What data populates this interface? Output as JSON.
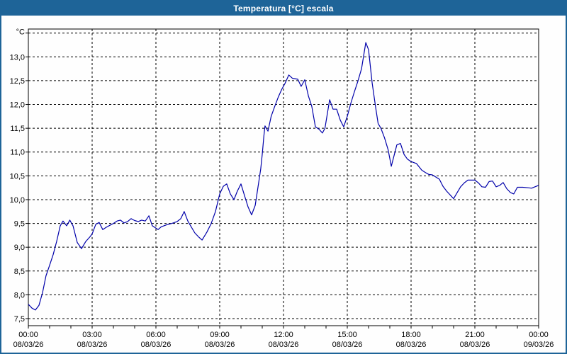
{
  "window": {
    "title": "Temperatura [°C] escala"
  },
  "colors": {
    "title_bar": "#1E6498",
    "window_border": "#1E6498",
    "background": "#FEFEFE",
    "plot_line": "#0000AA",
    "grid": "#000000",
    "axis_text": "#000000",
    "title_text": "#FFFFFF"
  },
  "axes": {
    "y_unit": "°C",
    "y_tick_labels": [
      "13,0",
      "12,5",
      "12,0",
      "11,5",
      "11,0",
      "10,5",
      "10,0",
      "9,5",
      "9,0",
      "8,5",
      "8,0",
      "7,5"
    ],
    "y_tick_values": [
      13.0,
      12.5,
      12.0,
      11.5,
      11.0,
      10.5,
      10.0,
      9.5,
      9.0,
      8.5,
      8.0,
      7.5
    ],
    "x_ticks": [
      {
        "hour": 0,
        "time": "00:00",
        "date": "08/03/26"
      },
      {
        "hour": 3,
        "time": "03:00",
        "date": "08/03/26"
      },
      {
        "hour": 6,
        "time": "06:00",
        "date": "08/03/26"
      },
      {
        "hour": 9,
        "time": "09:00",
        "date": "08/03/26"
      },
      {
        "hour": 12,
        "time": "12:00",
        "date": "08/03/26"
      },
      {
        "hour": 15,
        "time": "15:00",
        "date": "08/03/26"
      },
      {
        "hour": 18,
        "time": "18:00",
        "date": "08/03/26"
      },
      {
        "hour": 21,
        "time": "21:00",
        "date": "08/03/26"
      },
      {
        "hour": 24,
        "time": "00:00",
        "date": "09/03/26"
      }
    ]
  },
  "chart_data": {
    "type": "line",
    "title": "Temperatura [°C] escala",
    "xlabel": "",
    "ylabel": "°C",
    "x_unit": "hours since 08/03/26 00:00",
    "x_range": [
      0,
      24
    ],
    "y_grid_range": [
      7.5,
      13.5
    ],
    "y_grid_step": 0.5,
    "ylim": [
      7.35,
      13.6
    ],
    "grid": true,
    "legend": false,
    "points": [
      [
        0.0,
        7.8
      ],
      [
        0.17,
        7.72
      ],
      [
        0.33,
        7.68
      ],
      [
        0.5,
        7.78
      ],
      [
        0.67,
        8.05
      ],
      [
        0.83,
        8.4
      ],
      [
        1.0,
        8.62
      ],
      [
        1.17,
        8.85
      ],
      [
        1.33,
        9.12
      ],
      [
        1.5,
        9.45
      ],
      [
        1.63,
        9.55
      ],
      [
        1.8,
        9.45
      ],
      [
        1.95,
        9.57
      ],
      [
        2.1,
        9.45
      ],
      [
        2.3,
        9.1
      ],
      [
        2.5,
        8.97
      ],
      [
        2.7,
        9.12
      ],
      [
        2.9,
        9.22
      ],
      [
        3.0,
        9.28
      ],
      [
        3.17,
        9.48
      ],
      [
        3.33,
        9.52
      ],
      [
        3.5,
        9.37
      ],
      [
        3.67,
        9.42
      ],
      [
        3.83,
        9.46
      ],
      [
        4.0,
        9.5
      ],
      [
        4.17,
        9.55
      ],
      [
        4.33,
        9.57
      ],
      [
        4.5,
        9.51
      ],
      [
        4.67,
        9.54
      ],
      [
        4.83,
        9.6
      ],
      [
        5.0,
        9.56
      ],
      [
        5.17,
        9.54
      ],
      [
        5.33,
        9.57
      ],
      [
        5.5,
        9.55
      ],
      [
        5.67,
        9.66
      ],
      [
        5.83,
        9.45
      ],
      [
        6.0,
        9.4
      ],
      [
        6.1,
        9.37
      ],
      [
        6.25,
        9.43
      ],
      [
        6.5,
        9.47
      ],
      [
        6.75,
        9.5
      ],
      [
        7.0,
        9.54
      ],
      [
        7.17,
        9.6
      ],
      [
        7.33,
        9.75
      ],
      [
        7.5,
        9.55
      ],
      [
        7.67,
        9.42
      ],
      [
        7.83,
        9.3
      ],
      [
        8.0,
        9.22
      ],
      [
        8.17,
        9.15
      ],
      [
        8.4,
        9.32
      ],
      [
        8.6,
        9.5
      ],
      [
        8.8,
        9.75
      ],
      [
        9.0,
        10.12
      ],
      [
        9.17,
        10.28
      ],
      [
        9.33,
        10.33
      ],
      [
        9.5,
        10.12
      ],
      [
        9.67,
        10.0
      ],
      [
        9.83,
        10.18
      ],
      [
        10.0,
        10.33
      ],
      [
        10.17,
        10.08
      ],
      [
        10.33,
        9.85
      ],
      [
        10.5,
        9.68
      ],
      [
        10.67,
        9.88
      ],
      [
        10.83,
        10.35
      ],
      [
        10.93,
        10.65
      ],
      [
        11.0,
        10.95
      ],
      [
        11.08,
        11.35
      ],
      [
        11.13,
        11.55
      ],
      [
        11.27,
        11.44
      ],
      [
        11.42,
        11.75
      ],
      [
        11.58,
        11.95
      ],
      [
        11.75,
        12.15
      ],
      [
        11.92,
        12.32
      ],
      [
        12.08,
        12.45
      ],
      [
        12.25,
        12.62
      ],
      [
        12.42,
        12.55
      ],
      [
        12.67,
        12.53
      ],
      [
        12.83,
        12.38
      ],
      [
        13.0,
        12.52
      ],
      [
        13.17,
        12.18
      ],
      [
        13.33,
        11.96
      ],
      [
        13.5,
        11.53
      ],
      [
        13.67,
        11.48
      ],
      [
        13.83,
        11.4
      ],
      [
        13.95,
        11.5
      ],
      [
        14.17,
        12.1
      ],
      [
        14.33,
        11.9
      ],
      [
        14.5,
        11.9
      ],
      [
        14.67,
        11.67
      ],
      [
        14.83,
        11.53
      ],
      [
        15.0,
        11.75
      ],
      [
        15.17,
        12.03
      ],
      [
        15.33,
        12.26
      ],
      [
        15.5,
        12.49
      ],
      [
        15.67,
        12.75
      ],
      [
        15.87,
        13.3
      ],
      [
        16.0,
        13.15
      ],
      [
        16.17,
        12.45
      ],
      [
        16.33,
        11.95
      ],
      [
        16.45,
        11.6
      ],
      [
        16.58,
        11.5
      ],
      [
        16.75,
        11.3
      ],
      [
        16.92,
        11.05
      ],
      [
        17.07,
        10.7
      ],
      [
        17.33,
        11.15
      ],
      [
        17.5,
        11.18
      ],
      [
        17.67,
        10.95
      ],
      [
        17.83,
        10.85
      ],
      [
        18.0,
        10.8
      ],
      [
        18.25,
        10.76
      ],
      [
        18.5,
        10.62
      ],
      [
        18.67,
        10.57
      ],
      [
        18.83,
        10.53
      ],
      [
        19.0,
        10.52
      ],
      [
        19.33,
        10.43
      ],
      [
        19.5,
        10.28
      ],
      [
        19.67,
        10.18
      ],
      [
        20.0,
        10.02
      ],
      [
        20.33,
        10.27
      ],
      [
        20.5,
        10.35
      ],
      [
        20.67,
        10.41
      ],
      [
        21.0,
        10.41
      ],
      [
        21.17,
        10.35
      ],
      [
        21.33,
        10.27
      ],
      [
        21.5,
        10.26
      ],
      [
        21.67,
        10.38
      ],
      [
        21.83,
        10.39
      ],
      [
        22.0,
        10.27
      ],
      [
        22.17,
        10.3
      ],
      [
        22.33,
        10.36
      ],
      [
        22.5,
        10.23
      ],
      [
        22.67,
        10.15
      ],
      [
        22.83,
        10.12
      ],
      [
        23.0,
        10.26
      ],
      [
        23.25,
        10.26
      ],
      [
        23.5,
        10.25
      ],
      [
        23.67,
        10.24
      ],
      [
        23.83,
        10.27
      ],
      [
        24.0,
        10.3
      ]
    ]
  }
}
